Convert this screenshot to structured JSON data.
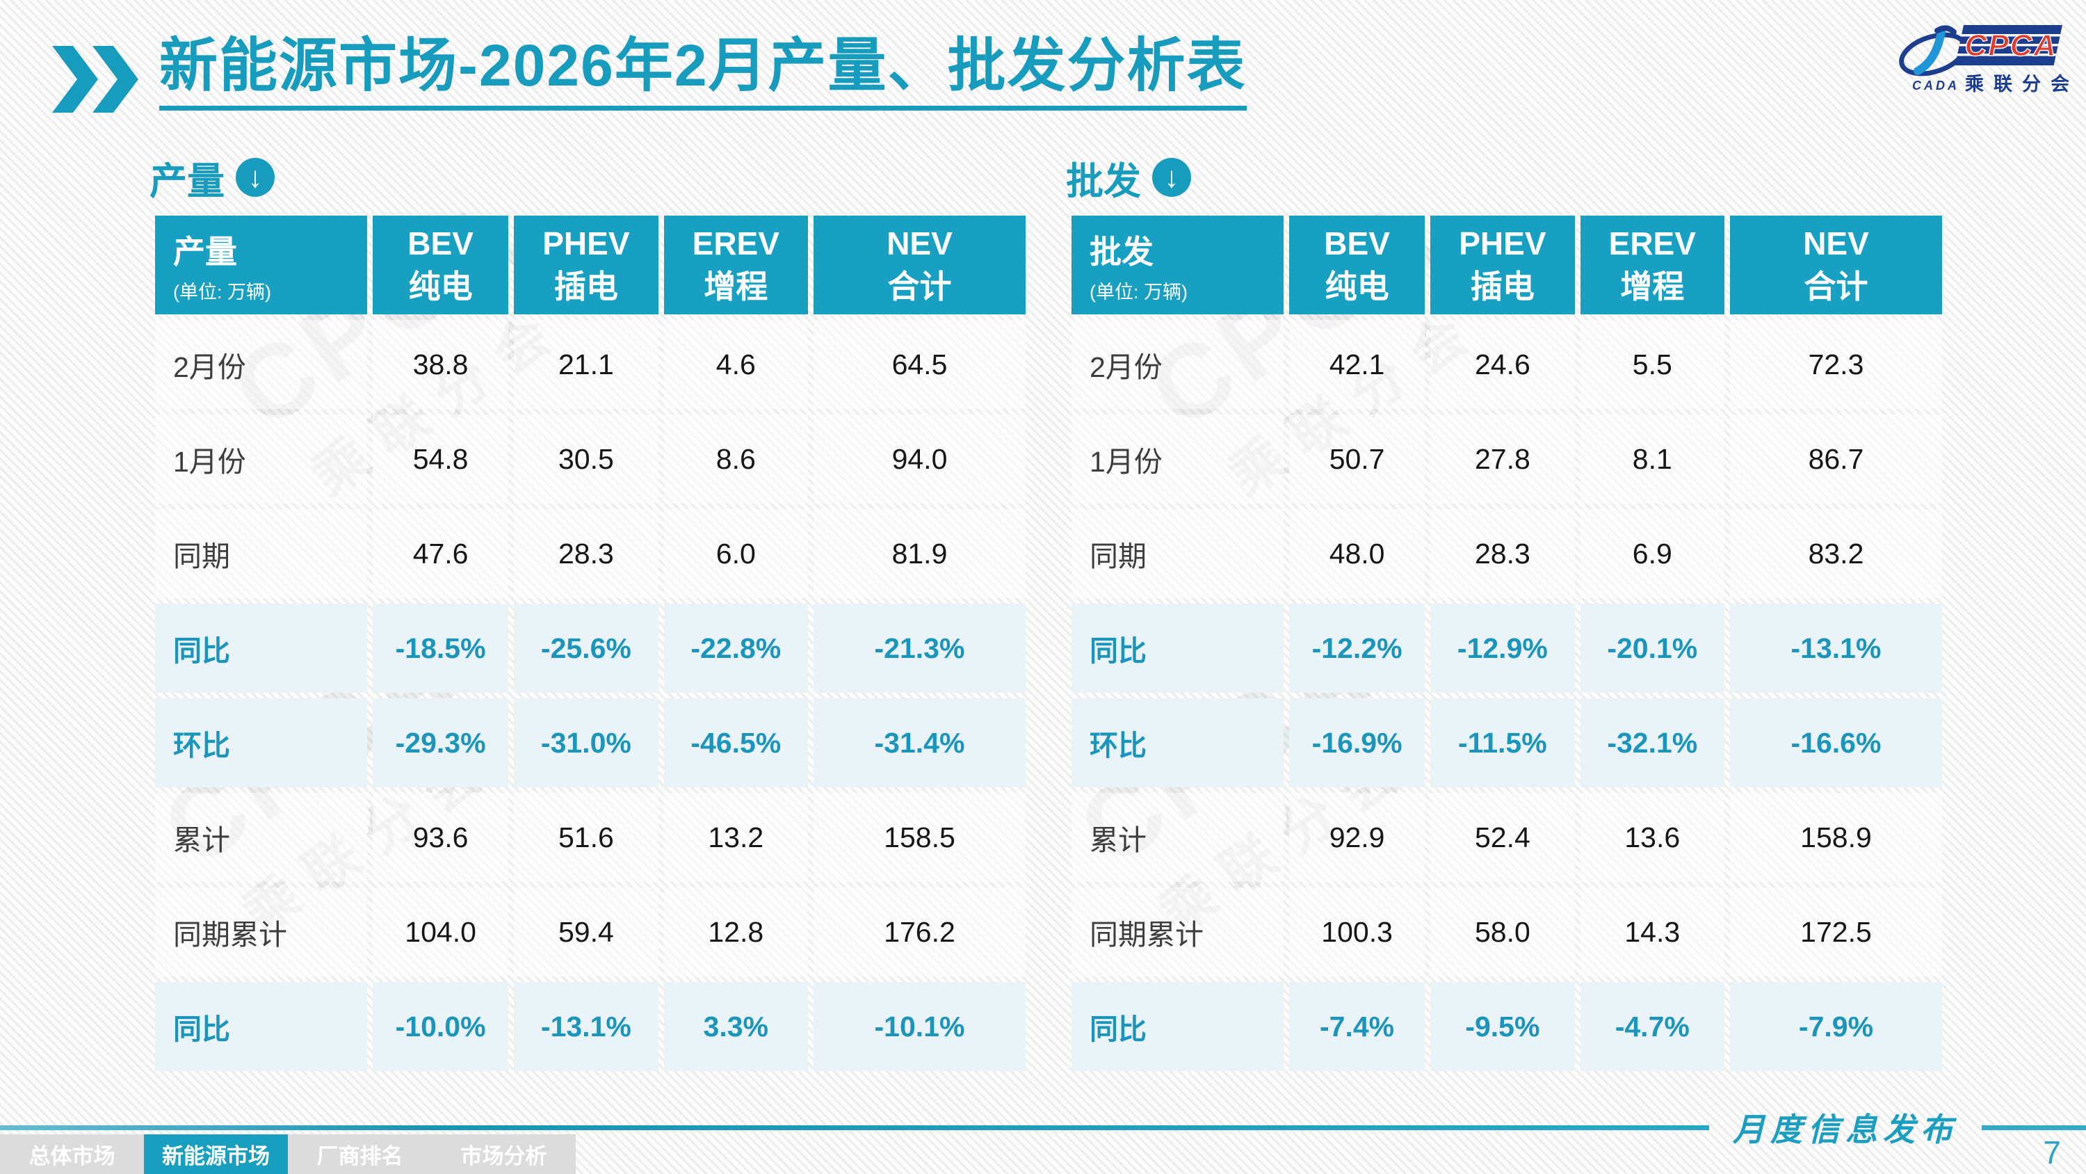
{
  "title": "新能源市场-2026年2月产量、批发分析表",
  "logo": {
    "cpca": "CPCA",
    "cada": "CADA",
    "subtitle": "乘联分会"
  },
  "watermark": {
    "line1": "CPCA",
    "line2": "乘联分会"
  },
  "sections": [
    {
      "label": "产量",
      "header": {
        "title": "产量",
        "unit": "(单位: 万辆)",
        "columns": [
          {
            "l1": "BEV",
            "l2": "纯电"
          },
          {
            "l1": "PHEV",
            "l2": "插电"
          },
          {
            "l1": "EREV",
            "l2": "增程"
          },
          {
            "l1": "NEV",
            "l2": "合计"
          }
        ]
      },
      "rows": [
        {
          "label": "2月份",
          "values": [
            "38.8",
            "21.1",
            "4.6",
            "64.5"
          ],
          "highlight": false
        },
        {
          "label": "1月份",
          "values": [
            "54.8",
            "30.5",
            "8.6",
            "94.0"
          ],
          "highlight": false
        },
        {
          "label": "同期",
          "values": [
            "47.6",
            "28.3",
            "6.0",
            "81.9"
          ],
          "highlight": false
        },
        {
          "label": "同比",
          "values": [
            "-18.5%",
            "-25.6%",
            "-22.8%",
            "-21.3%"
          ],
          "highlight": true
        },
        {
          "label": "环比",
          "values": [
            "-29.3%",
            "-31.0%",
            "-46.5%",
            "-31.4%"
          ],
          "highlight": true
        },
        {
          "label": "累计",
          "values": [
            "93.6",
            "51.6",
            "13.2",
            "158.5"
          ],
          "highlight": false
        },
        {
          "label": "同期累计",
          "values": [
            "104.0",
            "59.4",
            "12.8",
            "176.2"
          ],
          "highlight": false
        },
        {
          "label": "同比",
          "values": [
            "-10.0%",
            "-13.1%",
            "3.3%",
            "-10.1%"
          ],
          "highlight": true
        }
      ]
    },
    {
      "label": "批发",
      "header": {
        "title": "批发",
        "unit": "(单位: 万辆)",
        "columns": [
          {
            "l1": "BEV",
            "l2": "纯电"
          },
          {
            "l1": "PHEV",
            "l2": "插电"
          },
          {
            "l1": "EREV",
            "l2": "增程"
          },
          {
            "l1": "NEV",
            "l2": "合计"
          }
        ]
      },
      "rows": [
        {
          "label": "2月份",
          "values": [
            "42.1",
            "24.6",
            "5.5",
            "72.3"
          ],
          "highlight": false
        },
        {
          "label": "1月份",
          "values": [
            "50.7",
            "27.8",
            "8.1",
            "86.7"
          ],
          "highlight": false
        },
        {
          "label": "同期",
          "values": [
            "48.0",
            "28.3",
            "6.9",
            "83.2"
          ],
          "highlight": false
        },
        {
          "label": "同比",
          "values": [
            "-12.2%",
            "-12.9%",
            "-20.1%",
            "-13.1%"
          ],
          "highlight": true
        },
        {
          "label": "环比",
          "values": [
            "-16.9%",
            "-11.5%",
            "-32.1%",
            "-16.6%"
          ],
          "highlight": true
        },
        {
          "label": "累计",
          "values": [
            "92.9",
            "52.4",
            "13.6",
            "158.9"
          ],
          "highlight": false
        },
        {
          "label": "同期累计",
          "values": [
            "100.3",
            "58.0",
            "14.3",
            "172.5"
          ],
          "highlight": false
        },
        {
          "label": "同比",
          "values": [
            "-7.4%",
            "-9.5%",
            "-4.7%",
            "-7.9%"
          ],
          "highlight": true
        }
      ]
    }
  ],
  "footer": {
    "publication": "月度信息发布",
    "page": "7",
    "tabs": [
      {
        "label": "总体市场",
        "active": false
      },
      {
        "label": "新能源市场",
        "active": true
      },
      {
        "label": "厂商排名",
        "active": false
      },
      {
        "label": "市场分析",
        "active": false
      }
    ]
  }
}
